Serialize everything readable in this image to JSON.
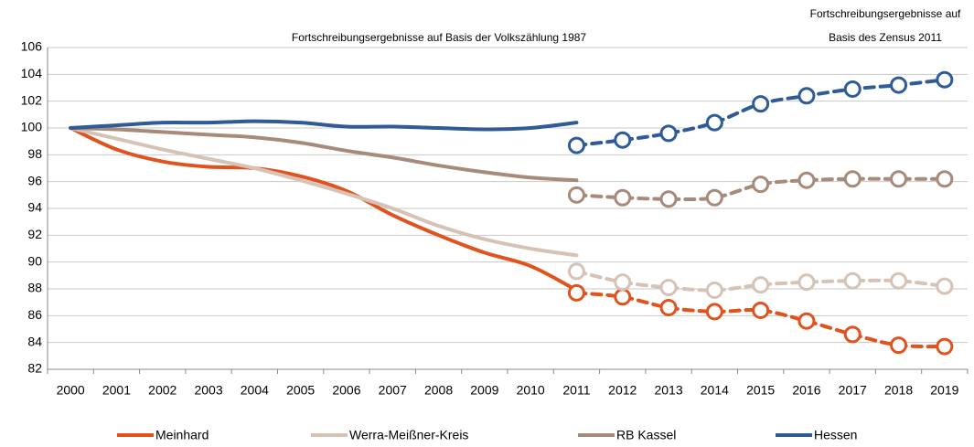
{
  "chart_data": {
    "type": "line",
    "annotations": [
      "Fortschreibungsergebnisse auf Basis der Volkszählung 1987",
      "Fortschreibungsergebnisse auf",
      "Basis des Zensus 2011"
    ],
    "categories": [
      "2000",
      "2001",
      "2002",
      "2003",
      "2004",
      "2005",
      "2006",
      "2007",
      "2008",
      "2009",
      "2010",
      "2011",
      "2012",
      "2013",
      "2014",
      "2015",
      "2016",
      "2017",
      "2018",
      "2019"
    ],
    "series": [
      {
        "name": "Meinhard",
        "color": "#e0531f",
        "values": [
          100,
          98.4,
          97.5,
          97.1,
          97.0,
          96.4,
          95.3,
          93.5,
          92.0,
          90.7,
          89.7,
          87.9,
          null,
          null,
          null,
          null,
          null,
          null,
          null,
          null
        ],
        "census_values": [
          null,
          null,
          null,
          null,
          null,
          null,
          null,
          null,
          null,
          null,
          null,
          87.7,
          87.4,
          86.6,
          86.3,
          86.4,
          85.6,
          84.6,
          83.8,
          83.7
        ]
      },
      {
        "name": "Werra-Meißner-Kreis",
        "color": "#d6c3b6",
        "values": [
          100,
          99.2,
          98.4,
          97.7,
          97.0,
          96.1,
          95.1,
          94.0,
          92.7,
          91.7,
          91.0,
          90.5,
          null,
          null,
          null,
          null,
          null,
          null,
          null,
          null
        ],
        "census_values": [
          null,
          null,
          null,
          null,
          null,
          null,
          null,
          null,
          null,
          null,
          null,
          89.3,
          88.5,
          88.1,
          87.9,
          88.3,
          88.5,
          88.6,
          88.6,
          88.2
        ]
      },
      {
        "name": "RB Kassel",
        "color": "#a68a7a",
        "values": [
          100,
          99.9,
          99.7,
          99.5,
          99.3,
          98.9,
          98.3,
          97.8,
          97.2,
          96.7,
          96.3,
          96.1,
          null,
          null,
          null,
          null,
          null,
          null,
          null,
          null
        ],
        "census_values": [
          null,
          null,
          null,
          null,
          null,
          null,
          null,
          null,
          null,
          null,
          null,
          95.0,
          94.8,
          94.7,
          94.8,
          95.8,
          96.1,
          96.2,
          96.2,
          96.2
        ]
      },
      {
        "name": "Hessen",
        "color": "#2f5b96",
        "values": [
          100,
          100.2,
          100.4,
          100.4,
          100.5,
          100.4,
          100.1,
          100.1,
          100.0,
          99.9,
          100.0,
          100.4,
          null,
          null,
          null,
          null,
          null,
          null,
          null,
          null
        ],
        "census_values": [
          null,
          null,
          null,
          null,
          null,
          null,
          null,
          null,
          null,
          null,
          null,
          98.7,
          99.1,
          99.6,
          100.4,
          101.8,
          102.4,
          102.9,
          103.2,
          103.6
        ]
      }
    ],
    "ylim": [
      82,
      106
    ],
    "yticks": [
      82,
      84,
      86,
      88,
      90,
      92,
      94,
      96,
      98,
      100,
      102,
      104,
      106
    ],
    "grid": true
  }
}
